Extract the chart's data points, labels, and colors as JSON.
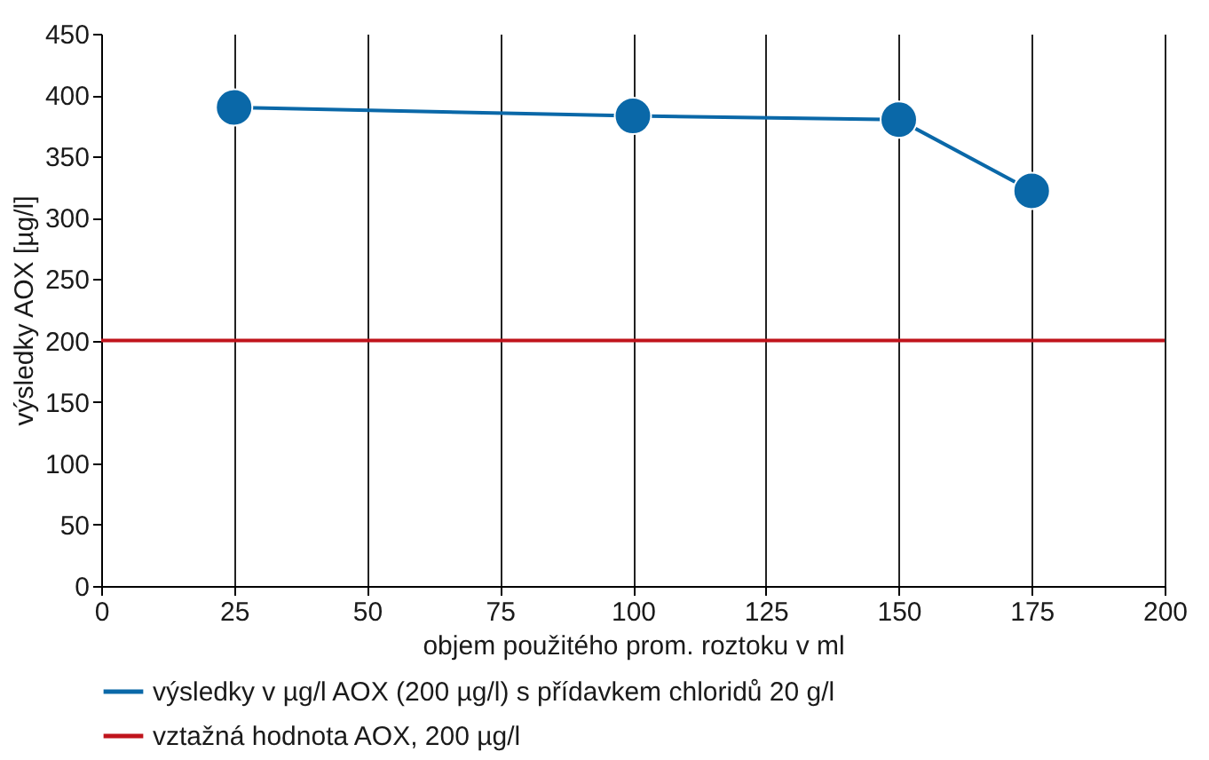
{
  "chart_data": {
    "type": "line",
    "xlabel": "objem použitého prom. roztoku v ml",
    "ylabel": "výsledky AOX [µg/l]",
    "x": [
      25,
      100,
      150,
      175
    ],
    "series": [
      {
        "name": "výsledky v µg/l AOX (200 µg/l) s přídavkem chloridů 20 g/l",
        "color": "#0a68a8",
        "values": [
          390,
          383,
          380,
          322
        ]
      }
    ],
    "ref_lines": [
      {
        "axis": "y",
        "value": 200,
        "label": "vztažná hodnota AOX, 200 µg/l",
        "color": "#c0141c"
      }
    ],
    "xlim": [
      0,
      200
    ],
    "xticks": [
      0,
      25,
      50,
      75,
      100,
      125,
      150,
      175,
      200
    ],
    "ylim": [
      0,
      450
    ],
    "yticks": [
      0,
      50,
      100,
      150,
      200,
      250,
      300,
      350,
      400,
      450
    ],
    "grid": "x",
    "legend": "bottom",
    "marker": "circle",
    "line_style": "solid"
  }
}
